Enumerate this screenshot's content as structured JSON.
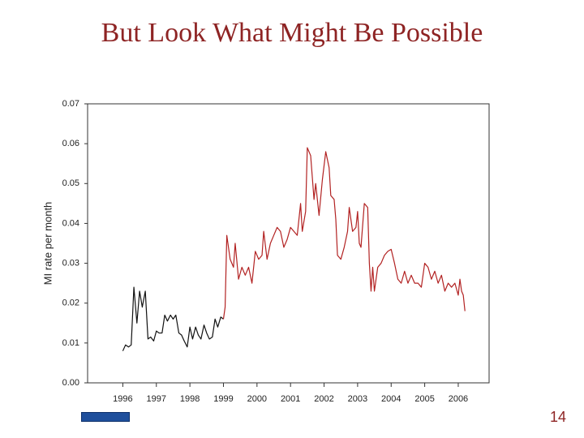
{
  "title": "But Look What Might Be Possible",
  "page_number": "14",
  "chart_data": {
    "type": "line",
    "y_label": "MI rate per month",
    "xlim": [
      1994.95,
      2006.92
    ],
    "xticks": [
      1996,
      1997,
      1998,
      1999,
      2000,
      2001,
      2002,
      2003,
      2004,
      2005,
      2006
    ],
    "ylim": [
      0,
      0.07
    ],
    "yticks": [
      {
        "value": 0,
        "label": "0.00"
      },
      0.01,
      0.02,
      0.03,
      0.04,
      0.05,
      0.06,
      0.07
    ],
    "grid": false,
    "series": [
      {
        "color": "#111111",
        "x": [
          1996.0,
          1996.08,
          1996.17,
          1996.25,
          1996.33,
          1996.42,
          1996.5,
          1996.58,
          1996.67,
          1996.75,
          1996.83,
          1996.92,
          1997.0,
          1997.08,
          1997.17,
          1997.25,
          1997.33,
          1997.42,
          1997.5,
          1997.58,
          1997.67,
          1997.75,
          1997.83,
          1997.92,
          1998.0,
          1998.08,
          1998.17,
          1998.25,
          1998.33,
          1998.42,
          1998.5,
          1998.58,
          1998.67,
          1998.75,
          1998.83,
          1998.92,
          1999.0
        ],
        "values": [
          0.008,
          0.0095,
          0.009,
          0.0095,
          0.024,
          0.015,
          0.023,
          0.019,
          0.023,
          0.011,
          0.0115,
          0.0105,
          0.013,
          0.0125,
          0.0125,
          0.017,
          0.0155,
          0.017,
          0.016,
          0.017,
          0.0125,
          0.012,
          0.0105,
          0.009,
          0.014,
          0.011,
          0.014,
          0.012,
          0.011,
          0.0145,
          0.0125,
          0.011,
          0.0115,
          0.016,
          0.014,
          0.0165,
          0.016
        ]
      },
      {
        "color": "#b22222",
        "x": [
          1999.0,
          1999.05,
          1999.1,
          1999.2,
          1999.3,
          1999.35,
          1999.45,
          1999.55,
          1999.65,
          1999.75,
          1999.85,
          1999.95,
          2000.05,
          2000.15,
          2000.2,
          2000.3,
          2000.4,
          2000.5,
          2000.6,
          2000.7,
          2000.8,
          2000.9,
          2001.0,
          2001.1,
          2001.2,
          2001.3,
          2001.35,
          2001.45,
          2001.5,
          2001.6,
          2001.7,
          2001.75,
          2001.85,
          2001.95,
          2002.05,
          2002.15,
          2002.2,
          2002.3,
          2002.35,
          2002.4,
          2002.5,
          2002.6,
          2002.7,
          2002.75,
          2002.85,
          2002.95,
          2003.0,
          2003.05,
          2003.1,
          2003.2,
          2003.3,
          2003.35,
          2003.4,
          2003.45,
          2003.5,
          2003.6,
          2003.7,
          2003.8,
          2003.9,
          2004.0,
          2004.1,
          2004.2,
          2004.3,
          2004.4,
          2004.5,
          2004.6,
          2004.7,
          2004.8,
          2004.9,
          2005.0,
          2005.1,
          2005.2,
          2005.3,
          2005.4,
          2005.5,
          2005.6,
          2005.7,
          2005.8,
          2005.9,
          2006.0,
          2006.05,
          2006.1,
          2006.15,
          2006.2
        ],
        "values": [
          0.016,
          0.019,
          0.037,
          0.031,
          0.029,
          0.035,
          0.026,
          0.029,
          0.027,
          0.029,
          0.025,
          0.033,
          0.031,
          0.032,
          0.038,
          0.031,
          0.035,
          0.037,
          0.039,
          0.038,
          0.034,
          0.036,
          0.039,
          0.038,
          0.037,
          0.045,
          0.038,
          0.043,
          0.059,
          0.057,
          0.046,
          0.05,
          0.042,
          0.051,
          0.058,
          0.054,
          0.047,
          0.046,
          0.041,
          0.032,
          0.031,
          0.034,
          0.038,
          0.044,
          0.038,
          0.039,
          0.043,
          0.035,
          0.034,
          0.045,
          0.044,
          0.03,
          0.023,
          0.029,
          0.023,
          0.029,
          0.03,
          0.032,
          0.033,
          0.0335,
          0.03,
          0.026,
          0.025,
          0.028,
          0.025,
          0.027,
          0.025,
          0.025,
          0.024,
          0.03,
          0.029,
          0.026,
          0.028,
          0.025,
          0.027,
          0.023,
          0.025,
          0.024,
          0.025,
          0.022,
          0.026,
          0.023,
          0.022,
          0.018
        ]
      }
    ]
  }
}
